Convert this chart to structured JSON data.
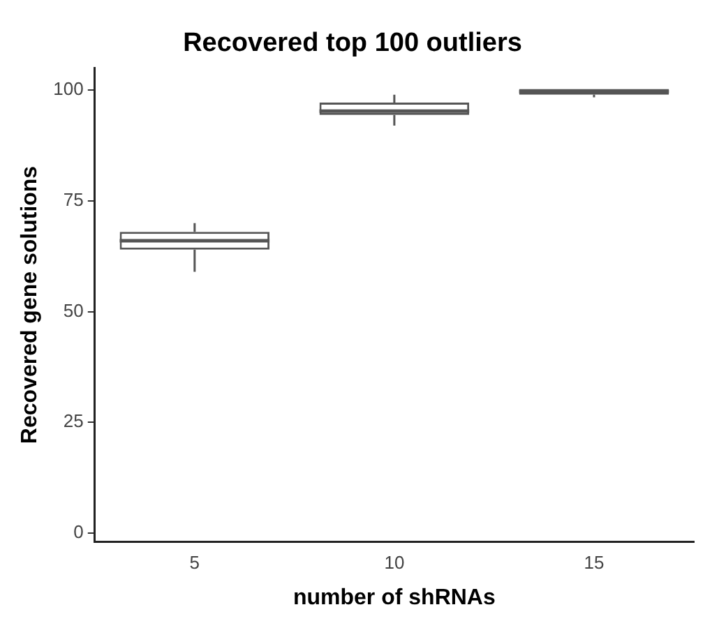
{
  "chart_data": {
    "type": "box",
    "title": "Recovered top 100 outliers",
    "xlabel": "number of shRNAs",
    "ylabel": "Recovered gene solutions",
    "categories": [
      "5",
      "10",
      "15"
    ],
    "boxes": [
      {
        "low": 59,
        "q1": 64,
        "median": 66,
        "q3": 68,
        "high": 70
      },
      {
        "low": 92,
        "q1": 94.4,
        "median": 95.3,
        "q3": 97.2,
        "high": 99
      },
      {
        "low": 98.4,
        "q1": 99,
        "median": 99.7,
        "q3": 100.3,
        "high": 100.3
      }
    ],
    "color": "#555555",
    "ylim": [
      -2,
      105
    ],
    "yticks": [
      0,
      25,
      50,
      75,
      100
    ],
    "grid": false,
    "legend": false
  }
}
